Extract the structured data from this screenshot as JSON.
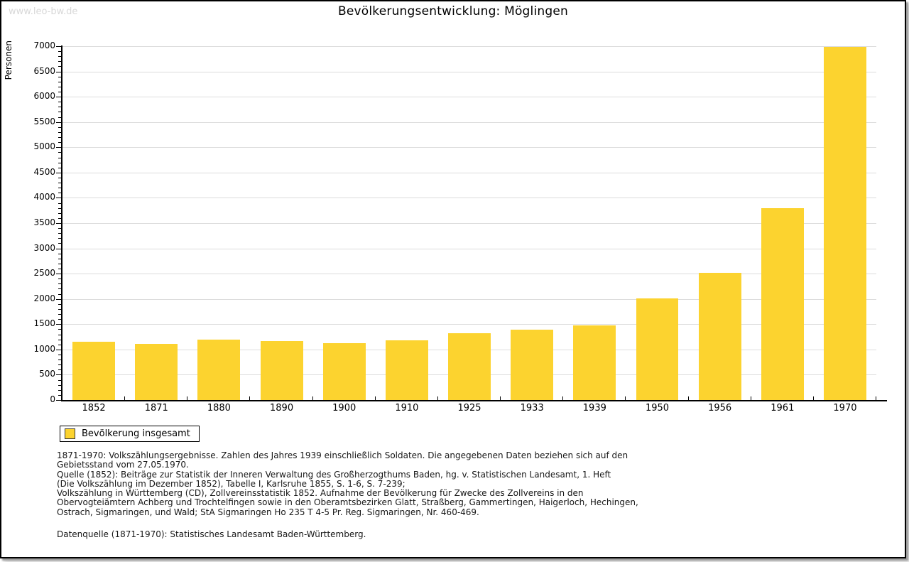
{
  "page": {
    "watermark": "www.leo-bw.de"
  },
  "chart_data": {
    "type": "bar",
    "title": "Bevölkerungsentwicklung: Möglingen",
    "ylabel": "Personen",
    "xlabel": "",
    "categories": [
      "1852",
      "1871",
      "1880",
      "1890",
      "1900",
      "1910",
      "1925",
      "1933",
      "1939",
      "1950",
      "1956",
      "1961",
      "1970"
    ],
    "values": [
      1155,
      1105,
      1190,
      1170,
      1125,
      1175,
      1315,
      1385,
      1480,
      2005,
      2520,
      3790,
      6980
    ],
    "series_name": "Bevölkerung insgesamt",
    "ylim": [
      0,
      7000
    ],
    "ytick_step": 500,
    "y_minor_tick_step": 100,
    "grid": true,
    "legend": "Bevölkerung insgesamt",
    "legend_position": "bottom-left"
  },
  "colors": {
    "bar": "#fcd32f",
    "grid": "#dcdcdc",
    "axis": "#000000",
    "watermark": "#d8d8d8"
  },
  "footer": {
    "lines": [
      "1871-1970: Volkszählungsergebnisse. Zahlen des Jahres 1939 einschließlich Soldaten. Die angegebenen Daten beziehen sich auf den",
      "Gebietsstand vom 27.05.1970.",
      "Quelle (1852): Beiträge zur Statistik der Inneren Verwaltung des Großherzogthums Baden, hg. v. Statistischen Landesamt, 1. Heft",
      "(Die Volkszählung im Dezember 1852), Tabelle I, Karlsruhe 1855, S. 1-6, S. 7-239;",
      "Volkszählung in Württemberg (CD), Zollvereinsstatistik 1852. Aufnahme der Bevölkerung für Zwecke des Zollvereins in den",
      "Obervogteiämtern Achberg und Trochtelfingen sowie in den Oberamtsbezirken Glatt, Straßberg, Gammertingen, Haigerloch, Hechingen,",
      "Ostrach, Sigmaringen, und Wald; StA Sigmaringen Ho 235 T 4-5 Pr. Reg. Sigmaringen, Nr. 460-469."
    ],
    "source": "Datenquelle (1871-1970): Statistisches Landesamt Baden-Württemberg."
  }
}
